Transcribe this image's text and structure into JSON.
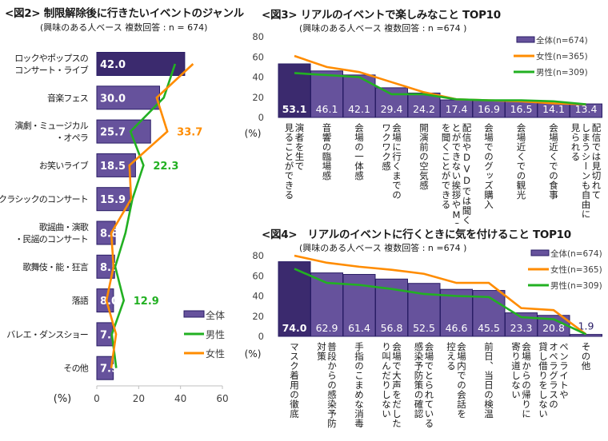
{
  "colors": {
    "bar_top": "#3b2a6e",
    "bar": "#66529c",
    "bar_border": "#2a1e66",
    "female": "#ff8c00",
    "male": "#22b022",
    "axis": "#bfbfbf",
    "tick_text": "#404040"
  },
  "chart_data": [
    {
      "id": "fig2",
      "type": "bar",
      "orientation": "horizontal",
      "title": "<図2> 制限解除後に行きたいイベントのジャンル",
      "subtitle": "(興味のある人ベース 複数回答 : n = 674)",
      "xlabel": "(%)",
      "xlim": [
        0,
        60
      ],
      "xticks": [
        "0",
        "20",
        "40",
        "60"
      ],
      "categories": [
        [
          "ロックやポップスの",
          "コンサート・ライブ"
        ],
        [
          "音楽フェス"
        ],
        [
          "演劇・ミュージカル",
          "・オペラ"
        ],
        [
          "お笑いライブ"
        ],
        [
          "クラシックのコンサート"
        ],
        [
          "歌謡曲・演歌",
          "・民謡のコンサート"
        ],
        [
          "歌舞伎・能・狂言"
        ],
        [
          "落語"
        ],
        [
          "バレエ・ダンスショー"
        ],
        [
          "その他"
        ]
      ],
      "series": [
        {
          "name": "全体",
          "kind": "bar",
          "values": [
            42.0,
            30.0,
            25.7,
            18.5,
            15.9,
            8.8,
            8.5,
            8.0,
            7.6,
            7.9
          ],
          "labels": [
            "42.0",
            "30.0",
            "25.7",
            "18.5",
            "15.9",
            "8.8",
            "8.5",
            "8.0",
            "7.6",
            "7.9"
          ]
        },
        {
          "name": "男性",
          "kind": "line",
          "values": [
            37.4,
            32.0,
            16.1,
            22.3,
            17.0,
            13.7,
            8.8,
            12.9,
            7.2,
            9.3
          ]
        },
        {
          "name": "女性",
          "kind": "line",
          "values": [
            46.0,
            28.6,
            33.7,
            15.6,
            16.4,
            6.9,
            8.0,
            4.6,
            9.2,
            6.9
          ]
        }
      ],
      "annotations": [
        {
          "series": "女性",
          "index": 2,
          "text": "33.7"
        },
        {
          "series": "男性",
          "index": 3,
          "text": "22.3"
        },
        {
          "series": "男性",
          "index": 7,
          "text": "12.9"
        }
      ],
      "legend": {
        "position": "bottom-right",
        "items": [
          "全体",
          "男性",
          "女性"
        ]
      }
    },
    {
      "id": "fig3",
      "type": "bar",
      "orientation": "vertical",
      "title": "<図3> リアルのイベントで楽しみなこと TOP10",
      "subtitle": "(興味のある人ベース 複数回答 : n =674 )",
      "ylabel": "(%)",
      "ylim": [
        0,
        80
      ],
      "yticks": [
        "0",
        "20",
        "40",
        "60",
        "80"
      ],
      "categories": [
        [
          "演者を生で",
          "見ることができる"
        ],
        [
          "音響の臨場感"
        ],
        [
          "会場の一体感"
        ],
        [
          "会場に行くまでの",
          "ワクワク感"
        ],
        [
          "開演前の空気感"
        ],
        [
          "配信やDVDでは聞くこ",
          "とができない挨拶やMC",
          "を聞くことができる"
        ],
        [
          "会場でのグッズ購入"
        ],
        [
          "会場近くでの観光"
        ],
        [
          "会場近くでの食事"
        ],
        [
          "配信では見切れて",
          "しまうシーンも自由に",
          "見られる"
        ]
      ],
      "series": [
        {
          "name": "全体(n=674)",
          "kind": "bar",
          "values": [
            53.1,
            46.1,
            42.1,
            29.4,
            24.2,
            17.4,
            16.9,
            16.5,
            14.1,
            13.4
          ],
          "labels": [
            "53.1",
            "46.1",
            "42.1",
            "29.4",
            "24.2",
            "17.4",
            "16.9",
            "16.5",
            "14.1",
            "13.4"
          ]
        },
        {
          "name": "女性(n=365)",
          "kind": "line",
          "values": [
            61,
            50,
            45,
            35,
            25,
            18,
            17,
            16,
            14,
            13
          ]
        },
        {
          "name": "男性(n=309)",
          "kind": "line",
          "values": [
            44,
            42,
            40,
            23,
            23,
            18,
            17,
            17,
            16,
            13
          ]
        }
      ],
      "legend": {
        "position": "top-right",
        "items": [
          "全体(n=674)",
          "女性(n=365)",
          "男性(n=309)"
        ]
      }
    },
    {
      "id": "fig4",
      "type": "bar",
      "orientation": "vertical",
      "title": "<図4>　リアルのイベントに行くときに気を付けること TOP10",
      "subtitle": "(興味のある人ベース 複数回答 : n =674 )",
      "ylabel": "(%)",
      "ylim": [
        0,
        80
      ],
      "yticks": [
        "0",
        "20",
        "40",
        "60",
        "80"
      ],
      "categories": [
        [
          "マスク着用の徹底"
        ],
        [
          "普段からの感染予防",
          "対策"
        ],
        [
          "手指のこまめな消毒"
        ],
        [
          "会場で大声をだした",
          "り叫んだりしない"
        ],
        [
          "会場でとられている",
          "感染予防策の確認"
        ],
        [
          "会場内での会話を",
          "控える"
        ],
        [
          "前日、当日の検温"
        ],
        [
          "会場からの帰りに",
          "寄り道しない"
        ],
        [
          "ペンライトや",
          "オペラグラスの",
          "貸し借りをしない"
        ],
        [
          "その他"
        ]
      ],
      "series": [
        {
          "name": "全体(n=674)",
          "kind": "bar",
          "values": [
            74.0,
            62.9,
            61.4,
            56.8,
            52.5,
            46.6,
            45.5,
            23.3,
            20.8,
            1.9
          ],
          "labels": [
            "74.0",
            "62.9",
            "61.4",
            "56.8",
            "52.5",
            "46.6",
            "45.5",
            "23.3",
            "20.8",
            "1.9"
          ]
        },
        {
          "name": "女性(n=365)",
          "kind": "line",
          "values": [
            80,
            73,
            69,
            66,
            62,
            53,
            53,
            28,
            26,
            2
          ]
        },
        {
          "name": "男性(n=309)",
          "kind": "line",
          "values": [
            67,
            53,
            51,
            47,
            42,
            40,
            39,
            19,
            17,
            2
          ]
        }
      ],
      "legend": {
        "position": "top-right",
        "items": [
          "全体(n=674)",
          "女性(n=365)",
          "男性(n=309)"
        ]
      }
    }
  ]
}
